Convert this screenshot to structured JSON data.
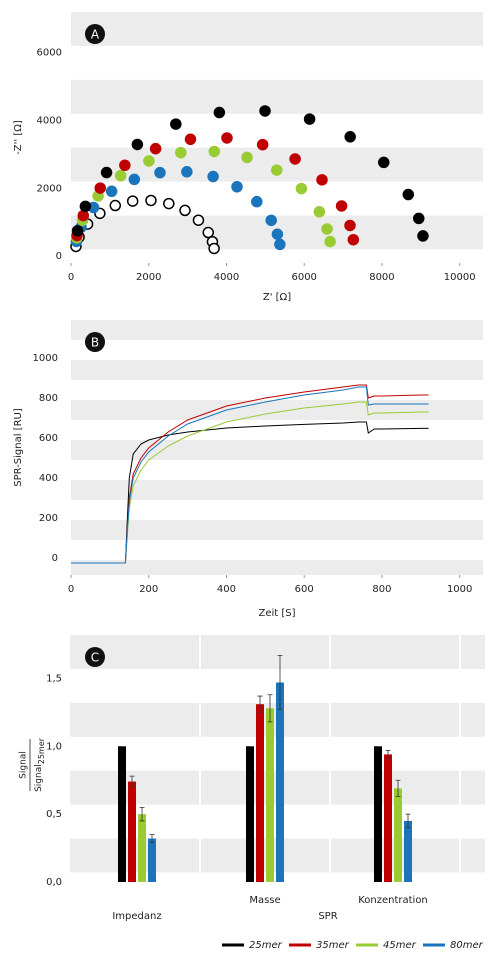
{
  "chart_data": [
    {
      "type": "scatter",
      "panel_label": "A",
      "xlabel": "Z' [Ω]",
      "ylabel": "-Z'' [Ω]",
      "xlim": [
        0,
        10600
      ],
      "ylim": [
        -200,
        7200
      ],
      "xticks": [
        0,
        2000,
        4000,
        6000,
        8000,
        10000
      ],
      "yticks": [
        0,
        2000,
        4000,
        6000
      ],
      "series": [
        {
          "color": "#000000",
          "marker_fill": "#ffffff",
          "x": [
            127,
            208,
            426,
            743,
            1139,
            1587,
            2057,
            2516,
            2933,
            3279,
            3531,
            3639,
            3682
          ],
          "values": [
            287,
            564,
            947,
            1264,
            1495,
            1625,
            1643,
            1551,
            1351,
            1061,
            698,
            427,
            229
          ]
        },
        {
          "color": "#1a75bc",
          "x": [
            140,
            259,
            580,
            1046,
            1629,
            2289,
            2981,
            3656,
            4271,
            4780,
            5151,
            5310,
            5374
          ],
          "values": [
            435,
            855,
            1435,
            1915,
            2265,
            2463,
            2490,
            2350,
            2048,
            1608,
            1058,
            648,
            348
          ]
        },
        {
          "color": "#99cc33",
          "x": [
            150,
            298,
            697,
            1278,
            2004,
            2826,
            3687,
            4529,
            5294,
            5928,
            6390,
            6588,
            6667
          ],
          "values": [
            539,
            1060,
            1779,
            2375,
            2809,
            3054,
            3088,
            2914,
            2539,
            1993,
            1311,
            803,
            431
          ]
        },
        {
          "color": "#c00000",
          "x": [
            154,
            316,
            752,
            1385,
            2177,
            3074,
            4013,
            4931,
            5766,
            6458,
            6962,
            7178,
            7264
          ],
          "values": [
            609,
            1197,
            2009,
            2681,
            3171,
            3448,
            3486,
            3290,
            2867,
            2251,
            1481,
            907,
            487
          ]
        },
        {
          "color": "#000000",
          "x": [
            168,
            370,
            915,
            1707,
            2697,
            3817,
            4992,
            6139,
            7183,
            8047,
            8677,
            8947,
            9055
          ],
          "values": [
            748,
            1471,
            2468,
            3294,
            3896,
            4236,
            4283,
            4042,
            3522,
            2765,
            1819,
            1114,
            598
          ]
        }
      ]
    },
    {
      "type": "line",
      "panel_label": "B",
      "xlabel": "Zeit [S]",
      "ylabel": "SPR-Signal [RU]",
      "xlim": [
        0,
        1060
      ],
      "ylim": [
        -85,
        1190
      ],
      "xticks": [
        0,
        200,
        400,
        600,
        800,
        1000
      ],
      "yticks": [
        0,
        200,
        400,
        600,
        800,
        1000
      ],
      "x": [
        0,
        140,
        145,
        150,
        160,
        180,
        200,
        250,
        300,
        400,
        500,
        600,
        700,
        740,
        760,
        765,
        780,
        800,
        900,
        920
      ],
      "series": [
        {
          "color": "#000000",
          "values": [
            -25,
            -25,
            200,
            400,
            520,
            570,
            590,
            615,
            630,
            650,
            660,
            668,
            675,
            680,
            680,
            625,
            645,
            645,
            648,
            648
          ]
        },
        {
          "color": "#c00000",
          "values": [
            -25,
            -25,
            150,
            300,
            420,
            500,
            550,
            630,
            690,
            760,
            800,
            830,
            855,
            865,
            865,
            800,
            810,
            810,
            815,
            815
          ]
        },
        {
          "color": "#99cc33",
          "values": [
            -25,
            -25,
            120,
            250,
            360,
            440,
            490,
            560,
            610,
            680,
            720,
            750,
            770,
            780,
            780,
            715,
            725,
            725,
            730,
            730
          ]
        },
        {
          "color": "#1a75bc",
          "values": [
            -25,
            -25,
            140,
            280,
            400,
            480,
            530,
            610,
            670,
            740,
            780,
            815,
            840,
            855,
            855,
            765,
            770,
            770,
            770,
            770
          ]
        }
      ]
    },
    {
      "type": "bar",
      "panel_label": "C",
      "ylabel_numerator": "Signal",
      "ylabel_denominator": "Signal",
      "ylabel_subscript": "25mer",
      "group_label": "SPR",
      "categories": [
        "Impedanz",
        "Masse",
        "Konzentration"
      ],
      "ylim": [
        0,
        1.82
      ],
      "yticks": [
        {
          "value": 0,
          "label": "0,0"
        },
        {
          "value": 0.5,
          "label": "0,5"
        },
        {
          "value": 1,
          "label": "1,0"
        },
        {
          "value": 1.5,
          "label": "1,5"
        }
      ],
      "series": [
        {
          "name": "25mer",
          "color": "#000000",
          "values": [
            1.0,
            1.0,
            1.0
          ]
        },
        {
          "name": "35mer",
          "color": "#c00000",
          "values": [
            0.74,
            1.31,
            0.94
          ],
          "errors": [
            0.04,
            0.06,
            0.03
          ]
        },
        {
          "name": "45mer",
          "color": "#99cc33",
          "values": [
            0.5,
            1.28,
            0.69
          ],
          "errors": [
            0.05,
            0.1,
            0.06
          ]
        },
        {
          "name": "80mer",
          "color": "#1a75bc",
          "values": [
            0.32,
            1.47,
            0.45
          ],
          "errors": [
            0.03,
            0.2,
            0.05
          ]
        }
      ]
    }
  ]
}
